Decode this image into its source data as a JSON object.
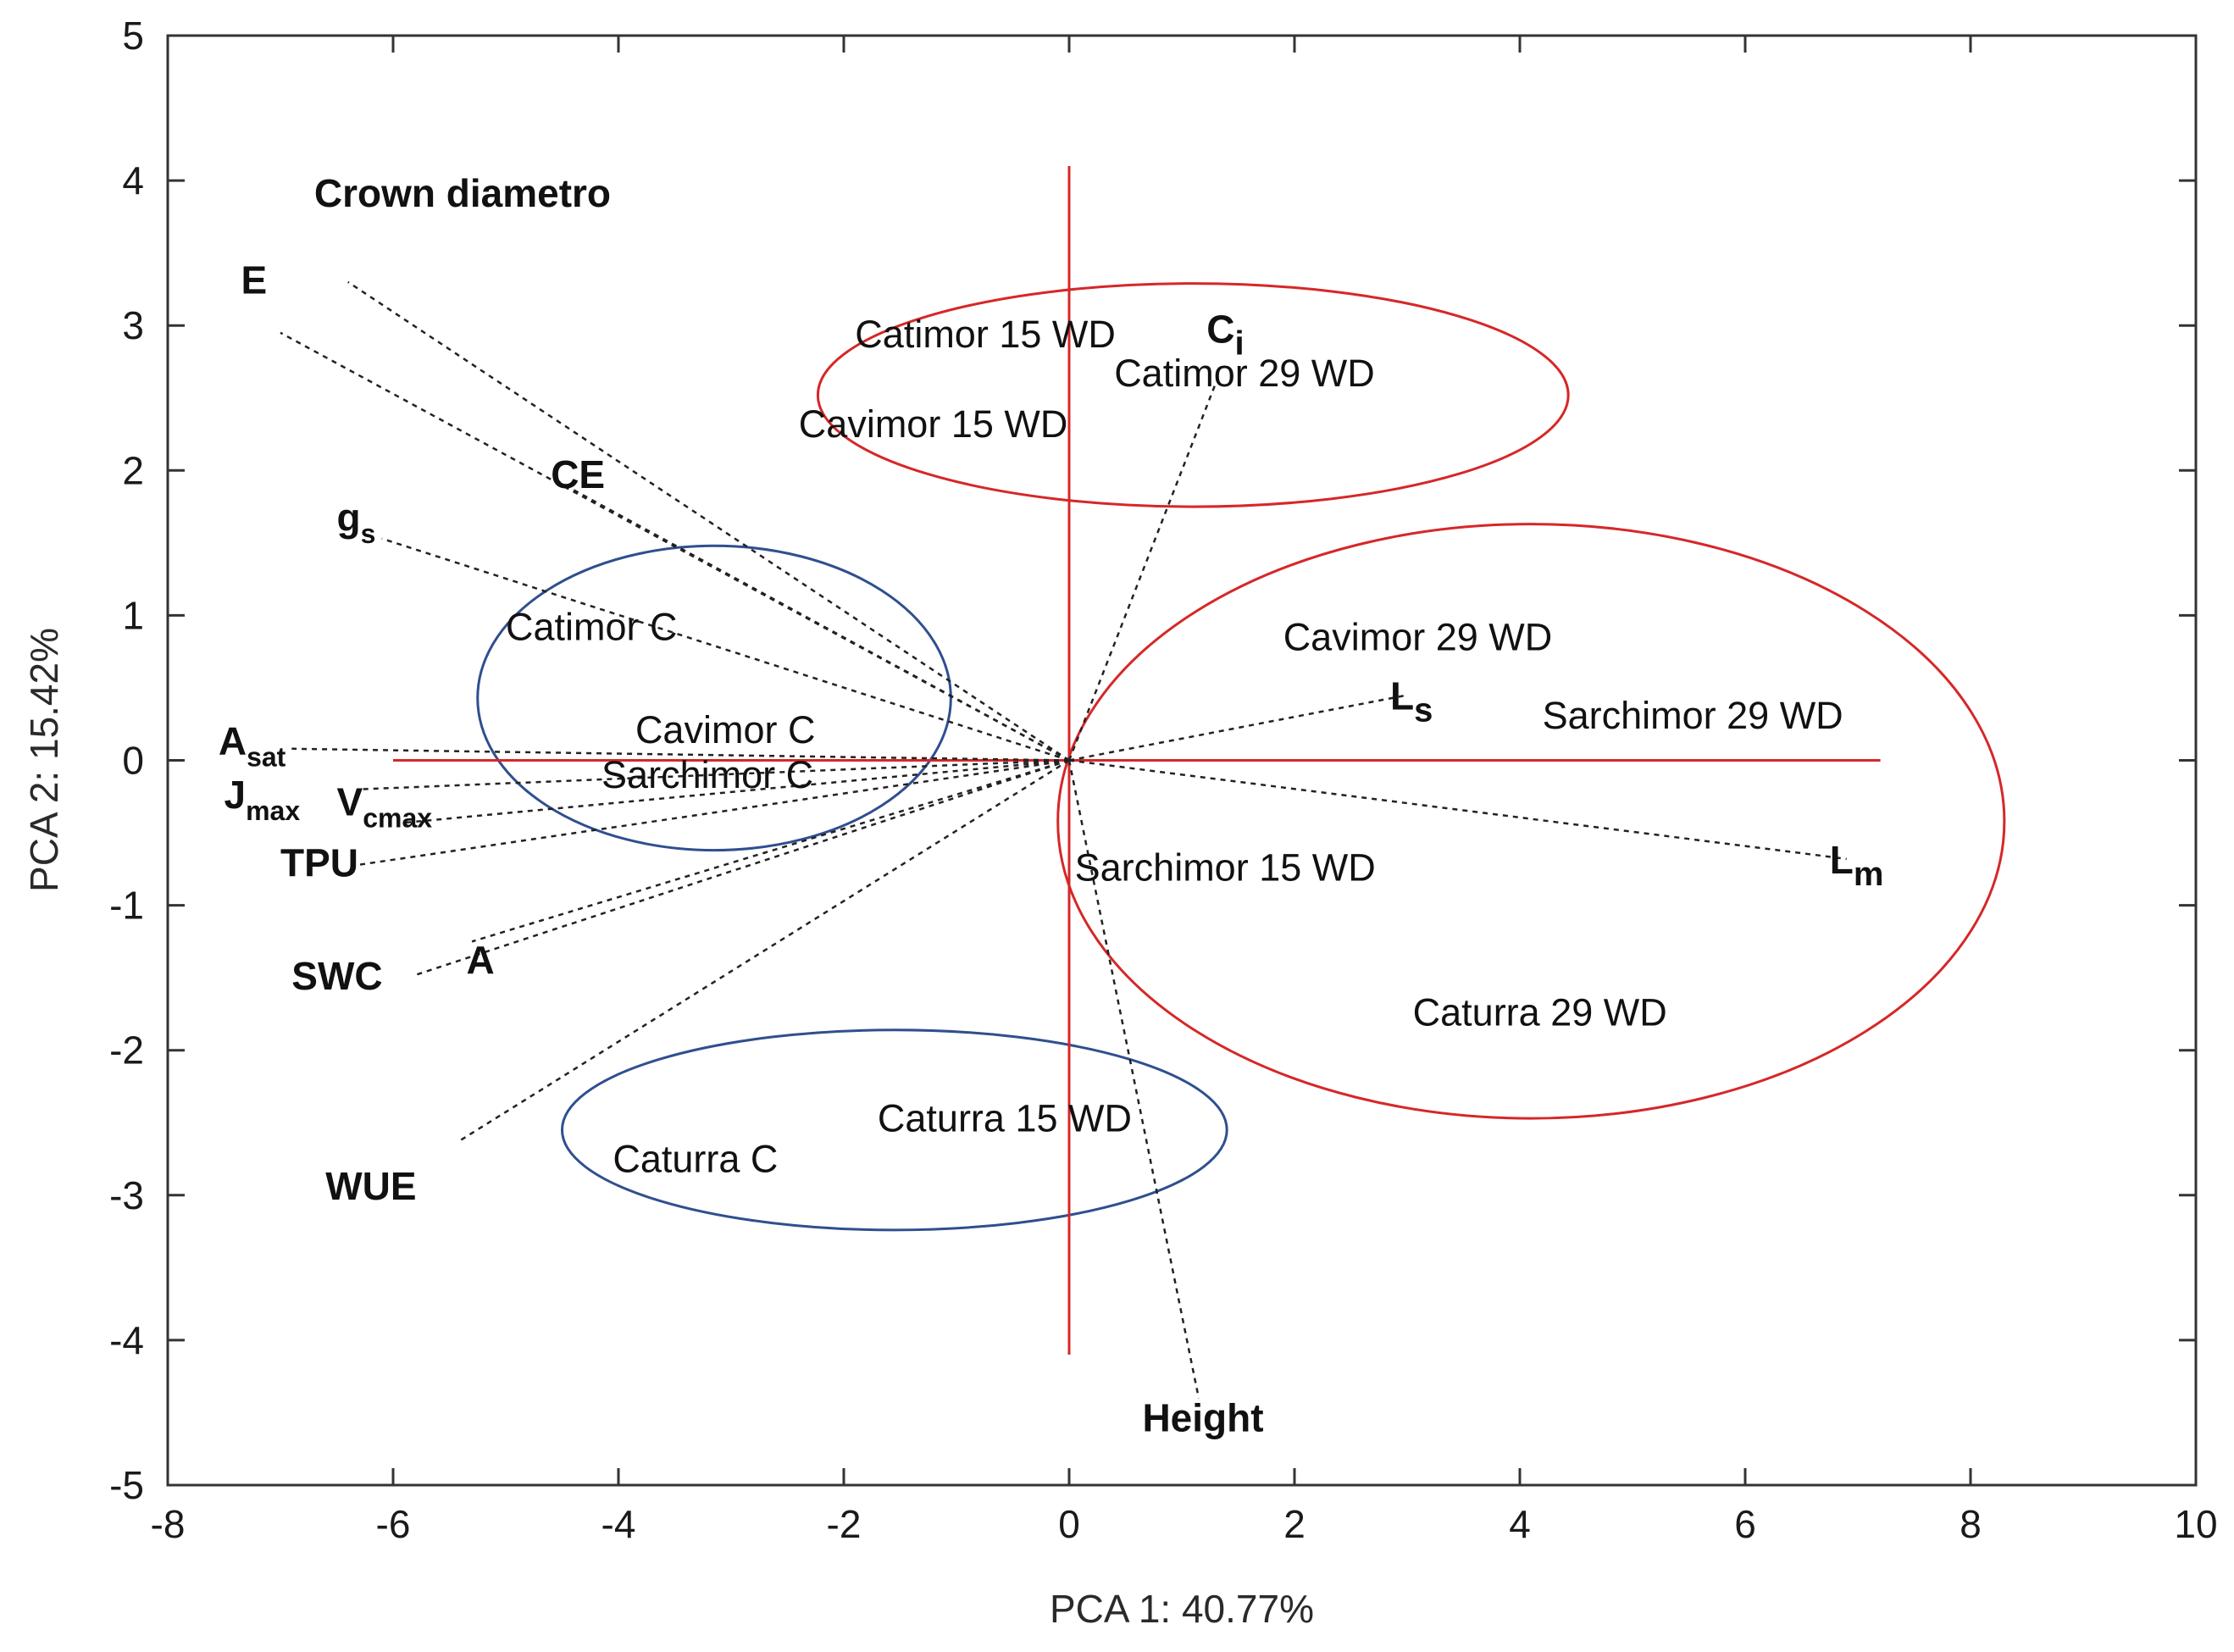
{
  "chart_data": {
    "type": "scatter",
    "subtype": "pca-biplot",
    "xlabel": "PCA 1: 40.77%",
    "ylabel": "PCA 2: 15.42%",
    "xlim": [
      -8,
      10
    ],
    "ylim": [
      -5,
      5
    ],
    "xticks": [
      "-8",
      "-6",
      "-4",
      "-2",
      "0",
      "2",
      "4",
      "6",
      "8",
      "10"
    ],
    "yticks": [
      "5",
      "4",
      "3",
      "2",
      "1",
      "0",
      "-1",
      "-2",
      "-3",
      "-4",
      "-5"
    ],
    "colors": {
      "red": "#d62728",
      "blue": "#2f4f8f",
      "vector": "#222222"
    },
    "axis_lines": {
      "horizontal": {
        "y": 0,
        "x": [
          -6,
          7.2
        ]
      },
      "vertical": {
        "x": 0,
        "y": [
          -4.1,
          4.1
        ]
      }
    },
    "ellipses": [
      {
        "name": "red-ellipse-top",
        "color": "red",
        "cx": 1.1,
        "cy": 2.52,
        "rx": 3.33,
        "ry": 0.77
      },
      {
        "name": "red-ellipse-right",
        "color": "red",
        "cx": 4.1,
        "cy": -0.42,
        "rx": 4.2,
        "ry": 2.05
      },
      {
        "name": "blue-ellipse-control",
        "color": "blue",
        "cx": -3.15,
        "cy": 0.43,
        "rx": 2.1,
        "ry": 1.05
      },
      {
        "name": "blue-ellipse-caturra",
        "color": "blue",
        "cx": -1.55,
        "cy": -2.55,
        "rx": 2.95,
        "ry": 0.69
      }
    ],
    "observations": [
      {
        "label": "Catimor 15 WD",
        "x": -1.9,
        "y": 2.85
      },
      {
        "label": "Catimor 29 WD",
        "x": 0.4,
        "y": 2.58
      },
      {
        "label": "Cavimor 15 WD",
        "x": -2.4,
        "y": 2.23
      },
      {
        "label": "Catimor C",
        "x": -5.0,
        "y": 0.83
      },
      {
        "label": "Cavimor 29 WD",
        "x": 1.9,
        "y": 0.76
      },
      {
        "label": "Sarchimor 29 WD",
        "x": 4.2,
        "y": 0.22
      },
      {
        "label": "Cavimor C",
        "x": -3.85,
        "y": 0.12
      },
      {
        "label": "Sarchimor C",
        "x": -4.15,
        "y": -0.19
      },
      {
        "label": "Sarchimor 15 WD",
        "x": 0.05,
        "y": -0.83
      },
      {
        "label": "Caturra 29 WD",
        "x": 3.05,
        "y": -1.83
      },
      {
        "label": "Caturra 15 WD",
        "x": -1.7,
        "y": -2.56
      },
      {
        "label": "Caturra C",
        "x": -4.05,
        "y": -2.84
      }
    ],
    "variables": [
      {
        "label": "Crown diametro",
        "x": -6.4,
        "y": 3.3,
        "label_x": -6.7,
        "label_y": 3.82
      },
      {
        "label": "E",
        "x": -7.0,
        "y": 2.95,
        "label_x": -7.35,
        "label_y": 3.22
      },
      {
        "label": "CE",
        "x": -4.55,
        "y": 1.93,
        "label_x": -4.6,
        "label_y": 1.88
      },
      {
        "label": "g",
        "sub": "s",
        "x": -6.1,
        "y": 1.53,
        "label_x": -6.5,
        "label_y": 1.58
      },
      {
        "label": "A",
        "sub": "sat",
        "x": -6.9,
        "y": 0.08,
        "label_x": -7.55,
        "label_y": 0.04
      },
      {
        "label": "J",
        "sub": "max",
        "x": -6.3,
        "y": -0.2,
        "label_x": -7.5,
        "label_y": -0.33
      },
      {
        "label": "V",
        "sub": "cmax",
        "x": -5.9,
        "y": -0.43,
        "label_x": -6.5,
        "label_y": -0.38
      },
      {
        "label": "TPU",
        "x": -6.3,
        "y": -0.72,
        "label_x": -7.0,
        "label_y": -0.8
      },
      {
        "label": "SWC",
        "x": -5.8,
        "y": -1.48,
        "label_x": -6.9,
        "label_y": -1.58
      },
      {
        "label": "A",
        "x": -5.3,
        "y": -1.25,
        "label_x": -5.35,
        "label_y": -1.47
      },
      {
        "label": "WUE",
        "x": -5.4,
        "y": -2.62,
        "label_x": -6.6,
        "label_y": -3.03
      },
      {
        "label": "C",
        "sub": "i",
        "x": 1.3,
        "y": 2.6,
        "label_x": 1.22,
        "label_y": 2.88
      },
      {
        "label": "L",
        "sub": "s",
        "x": 3.0,
        "y": 0.45,
        "label_x": 2.85,
        "label_y": 0.35
      },
      {
        "label": "L",
        "sub": "m",
        "x": 6.9,
        "y": -0.68,
        "label_x": 6.75,
        "label_y": -0.78
      },
      {
        "label": "Height",
        "x": 1.15,
        "y": -4.4,
        "label_x": 0.65,
        "label_y": -4.63
      }
    ]
  }
}
